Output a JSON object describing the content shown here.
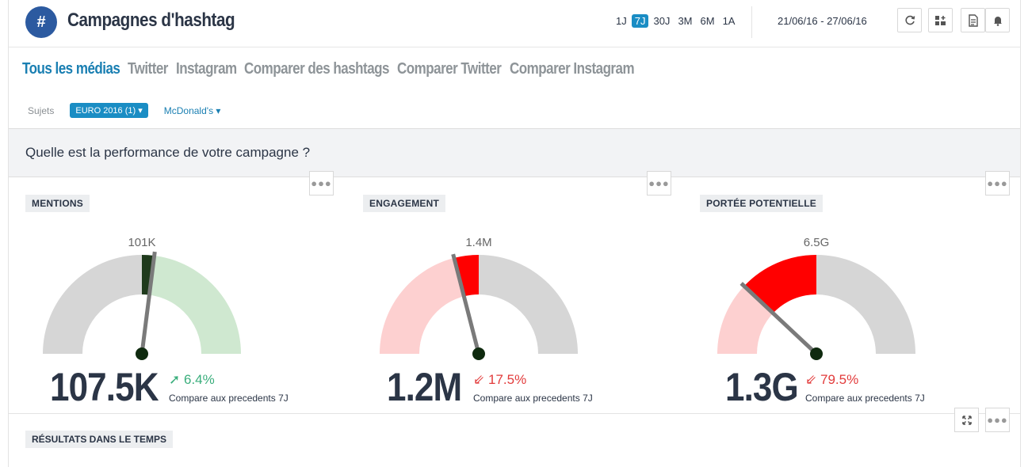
{
  "header": {
    "logo_symbol": "#",
    "title": "Campagnes d'hashtag",
    "periods": [
      "1J",
      "7J",
      "30J",
      "3M",
      "6M",
      "1A"
    ],
    "active_period": "7J",
    "date_range": "21/06/16 - 27/06/16"
  },
  "nav": {
    "tabs": [
      "Tous les médias",
      "Twitter",
      "Instagram",
      "Comparer des hashtags",
      "Comparer Twitter",
      "Comparer Instagram"
    ],
    "active_tab": "Tous les médias"
  },
  "subjects": {
    "label": "Sujets",
    "selected": "EURO 2016 (1) ▾",
    "other": "McDonald's ▾"
  },
  "section": {
    "title": "Quelle est la performance de votre campagne ?"
  },
  "widgets": [
    {
      "label": "MENTIONS",
      "target_label": "101K",
      "value": "107.5K",
      "delta": "6.4%",
      "direction": "up",
      "compare": "Compare aux precedents 7J",
      "fraction": 0.54,
      "previous_fraction": 0.5,
      "color": "#1f3a1c",
      "fill_color": "#cfe8d0"
    },
    {
      "label": "ENGAGEMENT",
      "target_label": "1.4M",
      "value": "1.2M",
      "delta": "17.5%",
      "direction": "down",
      "compare": "Compare aux precedents 7J",
      "fraction": 0.42,
      "previous_fraction": 0.5,
      "color": "#ff0000",
      "fill_color": "#fdd0d0"
    },
    {
      "label": "PORTÉE POTENTIELLE",
      "target_label": "6.5G",
      "value": "1.3G",
      "delta": "79.5%",
      "direction": "down",
      "compare": "Compare aux precedents 7J",
      "fraction": 0.24,
      "previous_fraction": 0.5,
      "color": "#ff0000",
      "fill_color": "#fdd0d0"
    }
  ],
  "results": {
    "label": "RÉSULTATS DANS LE TEMPS"
  },
  "colors": {
    "accent": "#1a8dc4",
    "logo": "#2c5aa0",
    "positive": "#3aae7c",
    "negative": "#e23b3b",
    "gauge_base": "#d6d6d6"
  },
  "icons": [
    "refresh-icon",
    "dashboard-add-icon",
    "report-add-icon",
    "alert-add-icon",
    "more-dots-icon",
    "expand-icon",
    "arrow-up-right-icon",
    "arrow-down-left-icon"
  ]
}
